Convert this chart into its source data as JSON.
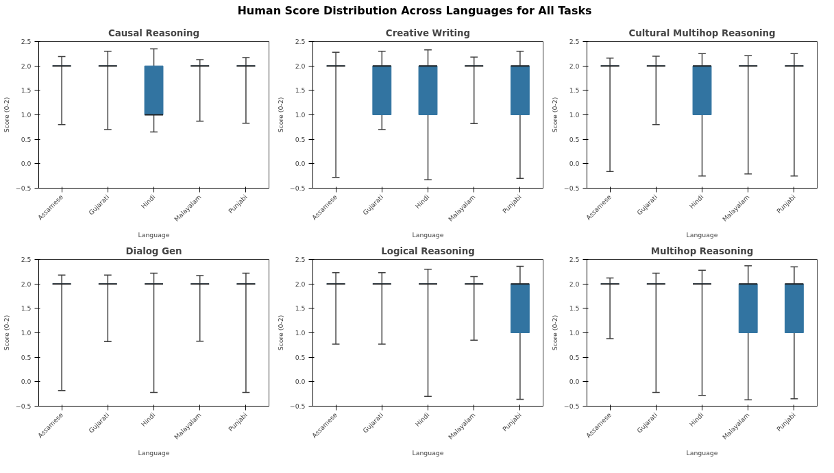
{
  "chart_data": [
    {
      "type": "box",
      "title": "Causal Reasoning",
      "xlabel": "Language",
      "ylabel": "Score (0-2)",
      "annotations": [
        "Human Score Distribution Across Languages for All Tasks"
      ],
      "color": "#3274a1",
      "categories": [
        "Assamese",
        "Gujarati",
        "Hindi",
        "Malayalam",
        "Punjabi"
      ],
      "ylim": [
        -0.5,
        2.5
      ],
      "yticks": [
        -0.5,
        {
          "value": 0,
          "label": "0.0"
        },
        0.5,
        {
          "value": 1,
          "label": "1.0"
        },
        1.5,
        {
          "value": 2,
          "label": "2.0"
        },
        2.5
      ],
      "grid": false,
      "boxes": [
        {
          "low": 0.8,
          "q1": 2,
          "median": 2,
          "q3": 2,
          "high": 2.19
        },
        {
          "low": 0.7,
          "q1": 2,
          "median": 2,
          "q3": 2,
          "high": 2.3
        },
        {
          "low": 0.65,
          "q1": 1,
          "median": 1,
          "q3": 2,
          "high": 2.35
        },
        {
          "low": 0.87,
          "q1": 2,
          "median": 2,
          "q3": 2,
          "high": 2.13
        },
        {
          "low": 0.83,
          "q1": 2,
          "median": 2,
          "q3": 2,
          "high": 2.17
        }
      ]
    },
    {
      "type": "box",
      "title": "Creative Writing",
      "xlabel": "Language",
      "ylabel": "Score (0-2)",
      "color": "#3274a1",
      "categories": [
        "Assamese",
        "Gujarati",
        "Hindi",
        "Malayalam",
        "Punjabi"
      ],
      "ylim": [
        -0.5,
        2.5
      ],
      "yticks": [
        -0.5,
        {
          "value": 0,
          "label": "0.0"
        },
        0.5,
        {
          "value": 1,
          "label": "1.0"
        },
        1.5,
        {
          "value": 2,
          "label": "2.0"
        },
        2.5
      ],
      "grid": false,
      "boxes": [
        {
          "low": -0.28,
          "q1": 2,
          "median": 2,
          "q3": 2,
          "high": 2.28
        },
        {
          "low": 0.7,
          "q1": 1,
          "median": 2,
          "q3": 2,
          "high": 2.3
        },
        {
          "low": -0.33,
          "q1": 1,
          "median": 2,
          "q3": 2,
          "high": 2.33
        },
        {
          "low": 0.82,
          "q1": 2,
          "median": 2,
          "q3": 2,
          "high": 2.18
        },
        {
          "low": -0.3,
          "q1": 1,
          "median": 2,
          "q3": 2,
          "high": 2.3
        }
      ]
    },
    {
      "type": "box",
      "title": "Cultural Multihop Reasoning",
      "xlabel": "Language",
      "ylabel": "Score (0-2)",
      "color": "#3274a1",
      "categories": [
        "Assamese",
        "Gujarati",
        "Hindi",
        "Malayalam",
        "Punjabi"
      ],
      "ylim": [
        -0.5,
        2.5
      ],
      "yticks": [
        -0.5,
        {
          "value": 0,
          "label": "0.0"
        },
        0.5,
        {
          "value": 1,
          "label": "1.0"
        },
        1.5,
        {
          "value": 2,
          "label": "2.0"
        },
        2.5
      ],
      "grid": false,
      "boxes": [
        {
          "low": -0.16,
          "q1": 2,
          "median": 2,
          "q3": 2,
          "high": 2.16
        },
        {
          "low": 0.8,
          "q1": 2,
          "median": 2,
          "q3": 2,
          "high": 2.2
        },
        {
          "low": -0.25,
          "q1": 1,
          "median": 2,
          "q3": 2,
          "high": 2.25
        },
        {
          "low": -0.21,
          "q1": 2,
          "median": 2,
          "q3": 2,
          "high": 2.21
        },
        {
          "low": -0.25,
          "q1": 2,
          "median": 2,
          "q3": 2,
          "high": 2.25
        }
      ]
    },
    {
      "type": "box",
      "title": "Dialog Gen",
      "xlabel": "Language",
      "ylabel": "Score (0-2)",
      "color": "#3274a1",
      "categories": [
        "Assamese",
        "Gujarati",
        "Hindi",
        "Malayalam",
        "Punjabi"
      ],
      "ylim": [
        -0.5,
        2.5
      ],
      "yticks": [
        -0.5,
        {
          "value": 0,
          "label": "0.0"
        },
        0.5,
        {
          "value": 1,
          "label": "1.0"
        },
        1.5,
        {
          "value": 2,
          "label": "2.0"
        },
        2.5
      ],
      "grid": false,
      "boxes": [
        {
          "low": -0.18,
          "q1": 2,
          "median": 2,
          "q3": 2,
          "high": 2.18
        },
        {
          "low": 0.82,
          "q1": 2,
          "median": 2,
          "q3": 2,
          "high": 2.18
        },
        {
          "low": -0.22,
          "q1": 2,
          "median": 2,
          "q3": 2,
          "high": 2.22
        },
        {
          "low": 0.83,
          "q1": 2,
          "median": 2,
          "q3": 2,
          "high": 2.17
        },
        {
          "low": -0.22,
          "q1": 2,
          "median": 2,
          "q3": 2,
          "high": 2.22
        }
      ]
    },
    {
      "type": "box",
      "title": "Logical Reasoning",
      "xlabel": "Language",
      "ylabel": "Score (0-2)",
      "color": "#3274a1",
      "categories": [
        "Assamese",
        "Gujarati",
        "Hindi",
        "Malayalam",
        "Punjabi"
      ],
      "ylim": [
        -0.5,
        2.5
      ],
      "yticks": [
        -0.5,
        {
          "value": 0,
          "label": "0.0"
        },
        0.5,
        {
          "value": 1,
          "label": "1.0"
        },
        1.5,
        {
          "value": 2,
          "label": "2.0"
        },
        2.5
      ],
      "grid": false,
      "boxes": [
        {
          "low": 0.77,
          "q1": 2,
          "median": 2,
          "q3": 2,
          "high": 2.23
        },
        {
          "low": 0.77,
          "q1": 2,
          "median": 2,
          "q3": 2,
          "high": 2.23
        },
        {
          "low": -0.3,
          "q1": 2,
          "median": 2,
          "q3": 2,
          "high": 2.3
        },
        {
          "low": 0.85,
          "q1": 2,
          "median": 2,
          "q3": 2,
          "high": 2.15
        },
        {
          "low": -0.36,
          "q1": 1,
          "median": 2,
          "q3": 2,
          "high": 2.36
        }
      ]
    },
    {
      "type": "box",
      "title": "Multihop Reasoning",
      "xlabel": "Language",
      "ylabel": "Score (0-2)",
      "color": "#3274a1",
      "categories": [
        "Assamese",
        "Gujarati",
        "Hindi",
        "Malayalam",
        "Punjabi"
      ],
      "ylim": [
        -0.5,
        2.5
      ],
      "yticks": [
        -0.5,
        {
          "value": 0,
          "label": "0.0"
        },
        0.5,
        {
          "value": 1,
          "label": "1.0"
        },
        1.5,
        {
          "value": 2,
          "label": "2.0"
        },
        2.5
      ],
      "grid": false,
      "boxes": [
        {
          "low": 0.88,
          "q1": 2,
          "median": 2,
          "q3": 2,
          "high": 2.12
        },
        {
          "low": -0.22,
          "q1": 2,
          "median": 2,
          "q3": 2,
          "high": 2.22
        },
        {
          "low": -0.28,
          "q1": 2,
          "median": 2,
          "q3": 2,
          "high": 2.28
        },
        {
          "low": -0.37,
          "q1": 1,
          "median": 2,
          "q3": 2,
          "high": 2.37
        },
        {
          "low": -0.35,
          "q1": 1,
          "median": 2,
          "q3": 2,
          "high": 2.35
        }
      ]
    }
  ]
}
